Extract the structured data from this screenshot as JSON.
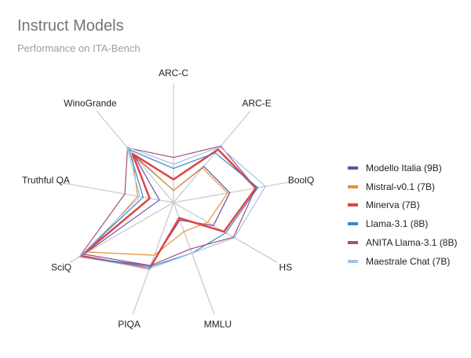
{
  "chart_data": {
    "type": "radar",
    "title": "Instruct Models",
    "subtitle": "Performance on ITA-Bench",
    "axes": [
      "ARC-C",
      "ARC-E",
      "BoolQ",
      "HS",
      "MMLU",
      "PIQA",
      "SciQ",
      "Truthful QA",
      "WinoGrande"
    ],
    "range": [
      0,
      100
    ],
    "grid": true,
    "legend_position": "right",
    "series": [
      {
        "name": "Modello Italia (9B)",
        "color": "#674ea7",
        "values": [
          11,
          43,
          52,
          42,
          17,
          61,
          94,
          13,
          55
        ]
      },
      {
        "name": "Mistral-v0.1 (7B)",
        "color": "#e69138",
        "values": [
          11,
          41,
          50,
          36,
          28,
          51,
          90,
          33,
          59
        ]
      },
      {
        "name": "Minerva (7B)",
        "color": "#e04343",
        "values": [
          21,
          63,
          76,
          53,
          15,
          64,
          97,
          22,
          58
        ]
      },
      {
        "name": "Llama-3.1 (8B)",
        "color": "#3d85c6",
        "values": [
          31,
          59,
          78,
          55,
          49,
          62,
          99,
          28,
          63
        ]
      },
      {
        "name": "ANITA Llama-3.1 (8B)",
        "color": "#a64d79",
        "values": [
          41,
          67,
          76,
          63,
          45,
          61,
          99,
          45,
          65
        ]
      },
      {
        "name": "Maestrale Chat (7B)",
        "color": "#9fc5e8",
        "values": [
          35,
          66,
          85,
          64,
          49,
          64,
          99,
          31,
          66
        ]
      }
    ]
  }
}
